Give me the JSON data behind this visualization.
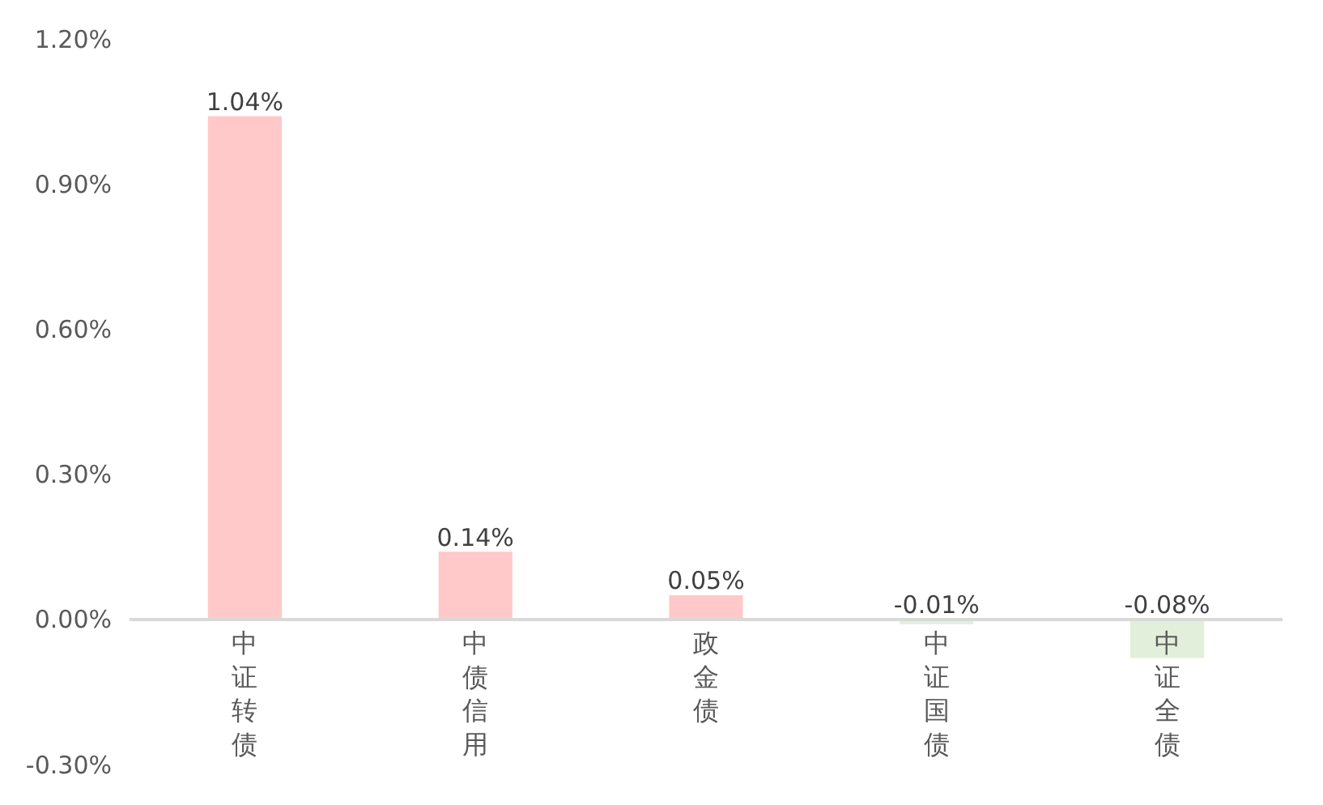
{
  "chart_data": {
    "type": "bar",
    "categories": [
      "中证转债",
      "中债信用",
      "政金债",
      "中证国债",
      "中证全债"
    ],
    "values": [
      1.04,
      0.14,
      0.05,
      -0.01,
      -0.08
    ],
    "colors": [
      "#ffc9c9",
      "#ffc9c9",
      "#ffc9c9",
      "#e2efda",
      "#e2efda"
    ],
    "value_labels": [
      "1.04%",
      "0.14%",
      "0.05%",
      "-0.01%",
      "-0.08%"
    ],
    "ylim": [
      -0.3,
      1.2
    ],
    "yticks": [
      {
        "value": -0.3,
        "label": "-0.30%"
      },
      {
        "value": 0,
        "label": "0.00%"
      },
      {
        "value": 0.3,
        "label": "0.30%"
      },
      {
        "value": 0.6,
        "label": "0.60%"
      },
      {
        "value": 0.9,
        "label": "0.90%"
      },
      {
        "value": 1.2,
        "label": "1.20%"
      }
    ],
    "grid": false
  }
}
